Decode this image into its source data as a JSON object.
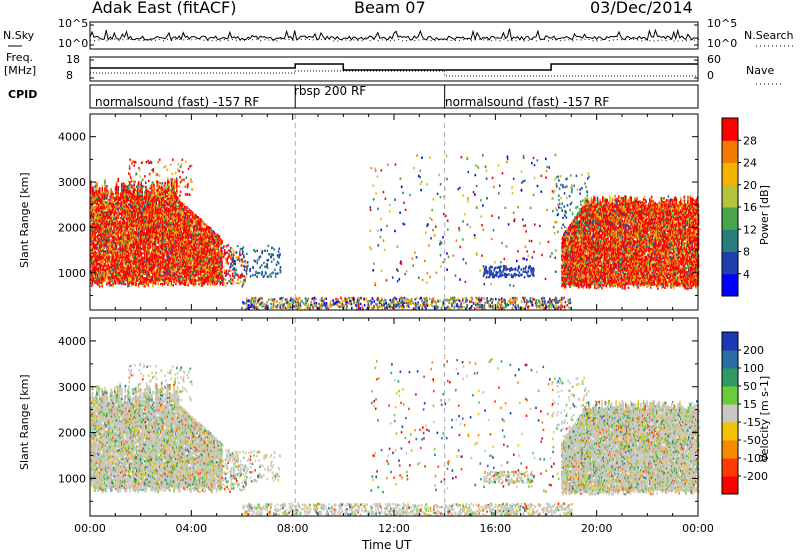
{
  "header": {
    "title_left": "Adak East (fitACF)",
    "title_center": "Beam 07",
    "title_right": "03/Dec/2014"
  },
  "noise_panel": {
    "left_label": "N.Sky",
    "right_label": "N.Search",
    "left_ticks": [
      "10^5",
      "10^0"
    ],
    "right_ticks": [
      "10^5",
      "10^0"
    ]
  },
  "freq_panel": {
    "left_label_1": "Freq.",
    "left_label_2": "[MHz]",
    "right_label": "Nave",
    "left_ticks": [
      "18",
      "8"
    ],
    "right_ticks": [
      "60",
      "0"
    ]
  },
  "cpid_panel": {
    "label": "CPID",
    "segments": [
      "normalsound (fast) -157 RF",
      "rbsp 200 RF",
      "normalsound (fast) -157 RF"
    ]
  },
  "x_axis": {
    "label": "Time UT",
    "ticks": [
      "00:00",
      "04:00",
      "08:00",
      "12:00",
      "16:00",
      "20:00",
      "00:00"
    ]
  },
  "chart_data": [
    {
      "type": "heatmap",
      "title": "",
      "xlabel": "Time UT",
      "ylabel": "Slant Range [km]",
      "xlim_hours": [
        0,
        24
      ],
      "ylim": [
        180,
        4500
      ],
      "yticks": [
        "1000",
        "2000",
        "3000",
        "4000"
      ],
      "colorbar": {
        "label": "Power [dB]",
        "ticks": [
          "4",
          "8",
          "12",
          "16",
          "20",
          "24",
          "28"
        ],
        "range": [
          0,
          30
        ],
        "colors": [
          "#0000ff",
          "#1f3fae",
          "#2a7d7d",
          "#4aa54a",
          "#b5c43a",
          "#f3b300",
          "#f57a00",
          "#ff0000"
        ]
      }
    },
    {
      "type": "heatmap",
      "title": "",
      "xlabel": "Time UT",
      "ylabel": "Slant Range [km]",
      "xlim_hours": [
        0,
        24
      ],
      "ylim": [
        180,
        4500
      ],
      "yticks": [
        "1000",
        "2000",
        "3000",
        "4000"
      ],
      "colorbar": {
        "label": "Velocity [m s-1]",
        "ticks": [
          "200",
          "100",
          "50",
          "15",
          "-15",
          "-50",
          "-100",
          "-200"
        ],
        "range": [
          -250,
          250
        ],
        "colors": [
          "#1a3ab5",
          "#2a6ea5",
          "#2f9a62",
          "#6bcc3a",
          "#c8c8c0",
          "#f3c200",
          "#f58a00",
          "#ff3c00",
          "#ff0000"
        ]
      }
    }
  ]
}
